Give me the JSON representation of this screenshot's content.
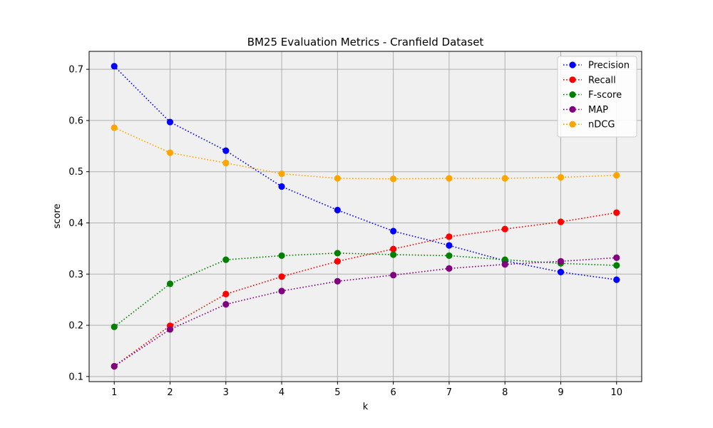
{
  "chart_data": {
    "type": "line",
    "title": "BM25 Evaluation Metrics - Cranfield Dataset",
    "xlabel": "k",
    "ylabel": "score",
    "x": [
      1,
      2,
      3,
      4,
      5,
      6,
      7,
      8,
      9,
      10
    ],
    "xlim": [
      0.55,
      10.45
    ],
    "ylim": [
      0.09,
      0.735
    ],
    "yticks": [
      0.1,
      0.2,
      0.3,
      0.4,
      0.5,
      0.6,
      0.7
    ],
    "grid": true,
    "legend": "top-right",
    "background": "#f0f0f0",
    "series": [
      {
        "name": "Precision",
        "color": "#0000ff",
        "values": [
          0.706,
          0.597,
          0.541,
          0.471,
          0.425,
          0.384,
          0.356,
          0.326,
          0.304,
          0.289
        ]
      },
      {
        "name": "Recall",
        "color": "#ff0000",
        "values": [
          0.12,
          0.199,
          0.261,
          0.295,
          0.325,
          0.349,
          0.373,
          0.388,
          0.402,
          0.42
        ]
      },
      {
        "name": "F-score",
        "color": "#008000",
        "values": [
          0.197,
          0.281,
          0.328,
          0.336,
          0.341,
          0.338,
          0.336,
          0.328,
          0.321,
          0.317
        ]
      },
      {
        "name": "MAP",
        "color": "#800080",
        "values": [
          0.12,
          0.192,
          0.241,
          0.267,
          0.286,
          0.298,
          0.311,
          0.319,
          0.325,
          0.332
        ]
      },
      {
        "name": "nDCG",
        "color": "#ffa500",
        "values": [
          0.586,
          0.537,
          0.517,
          0.496,
          0.487,
          0.486,
          0.487,
          0.487,
          0.489,
          0.493
        ]
      }
    ]
  }
}
